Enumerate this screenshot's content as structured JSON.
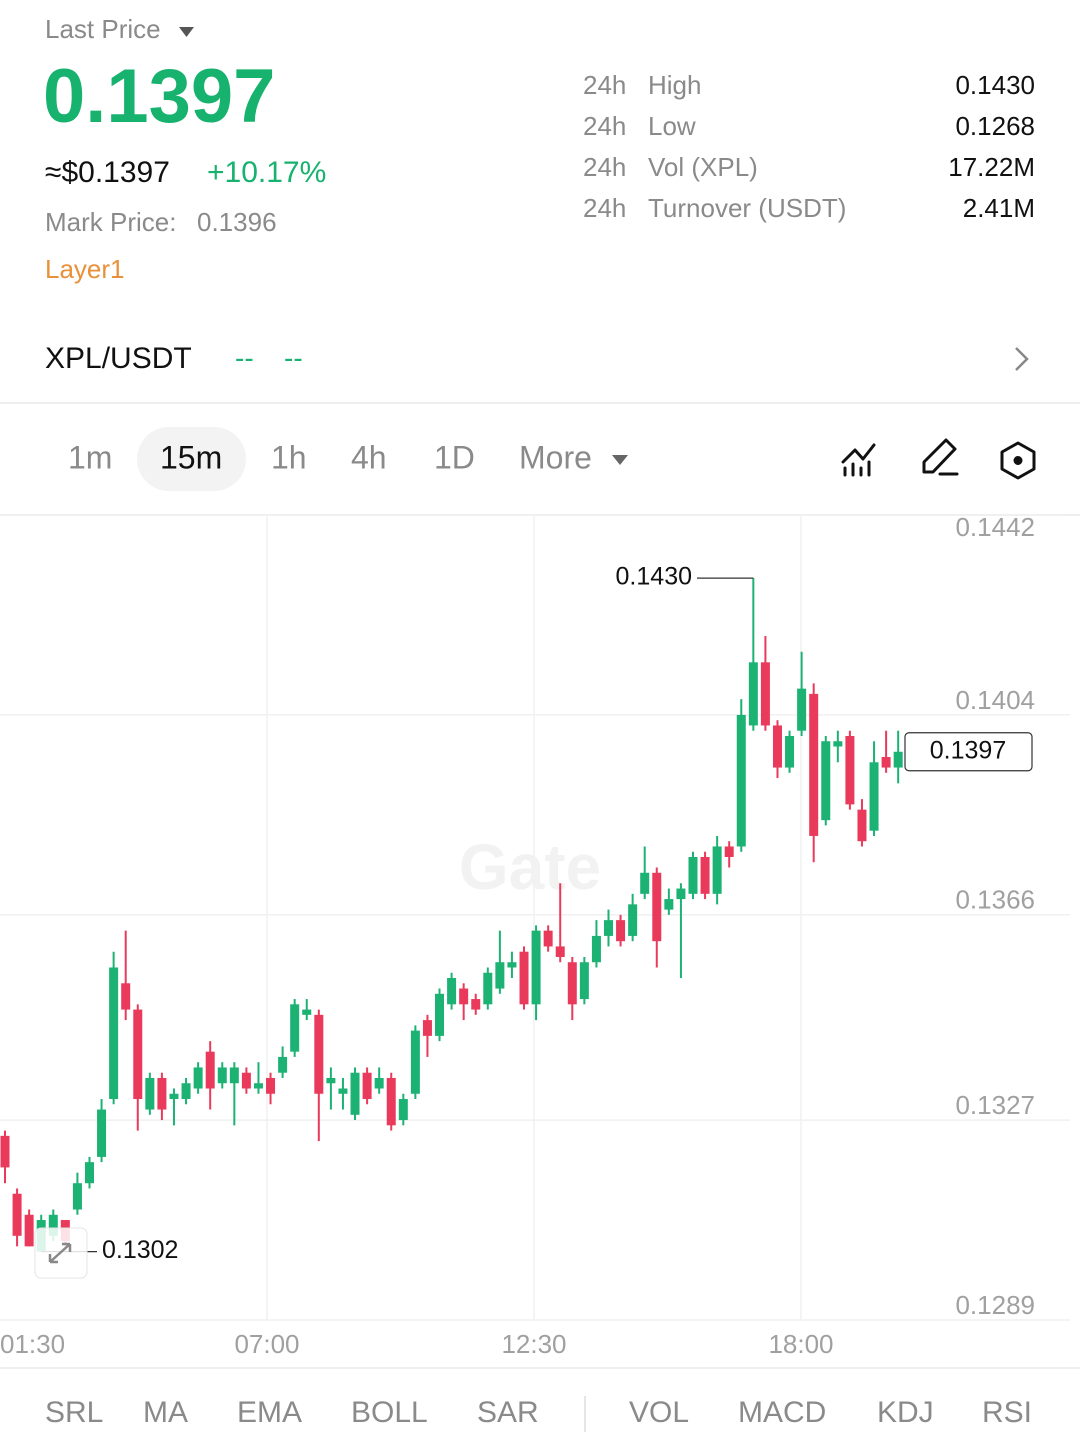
{
  "header": {
    "label": "Last Price",
    "price": "0.1397",
    "usd_price": "≈$0.1397",
    "change": "+10.17%",
    "mark_price_label": "Mark Price:",
    "mark_price": "0.1396",
    "tag": "Layer1"
  },
  "stats": [
    {
      "period": "24h",
      "label": "High",
      "value": "0.1430"
    },
    {
      "period": "24h",
      "label": "Low",
      "value": "0.1268"
    },
    {
      "period": "24h",
      "label": "Vol (XPL)",
      "value": "17.22M"
    },
    {
      "period": "24h",
      "label": "Turnover (USDT)",
      "value": "2.41M"
    }
  ],
  "pair": {
    "symbol": "XPL/USDT",
    "placeholders": [
      "--",
      "--"
    ]
  },
  "intervals": [
    "1m",
    "15m",
    "1h",
    "4h",
    "1D",
    "More"
  ],
  "indicators": {
    "main": [
      "SRL",
      "MA",
      "EMA",
      "BOLL",
      "SAR"
    ],
    "sub": [
      "VOL",
      "MACD",
      "KDJ",
      "RSI"
    ]
  },
  "watermark": "Gate",
  "chart_data": {
    "type": "candlestick",
    "x_labels": [
      "01:30",
      "07:00",
      "12:30",
      "18:00"
    ],
    "ylim": [
      0.1289,
      0.1442
    ],
    "yticks": [
      0.1442,
      0.1404,
      0.1366,
      0.1327,
      0.1289
    ],
    "grid": true,
    "up_color": "#1bb273",
    "down_color": "#ea3a5b",
    "open": [
      0.1324,
      0.1313,
      0.1309,
      0.1302,
      0.1305,
      0.1308,
      0.131,
      0.1315,
      0.132,
      0.1331,
      0.1353,
      0.1348,
      0.1329,
      0.1335,
      0.1331,
      0.1331,
      0.1333,
      0.134,
      0.1334,
      0.1334,
      0.1336,
      0.1333,
      0.1335,
      0.1336,
      0.134,
      0.1347,
      0.1347,
      0.1334,
      0.1332,
      0.1328,
      0.1336,
      0.1333,
      0.1335,
      0.1327,
      0.1332,
      0.1346,
      0.1343,
      0.1349,
      0.1352,
      0.135,
      0.1349,
      0.1352,
      0.1356,
      0.1359,
      0.1349,
      0.1363,
      0.136,
      0.1357,
      0.135,
      0.1357,
      0.1362,
      0.1365,
      0.1362,
      0.137,
      0.1374,
      0.1367,
      0.1369,
      0.137,
      0.1377,
      0.137,
      0.1379,
      0.1379,
      0.1402,
      0.1414,
      0.1402,
      0.1394,
      0.1401,
      0.1408,
      0.1384,
      0.1398,
      0.14,
      0.1386,
      0.1382,
      0.1396,
      0.1394
    ],
    "high": [
      0.1325,
      0.1314,
      0.131,
      0.1309,
      0.131,
      0.1308,
      0.1317,
      0.132,
      0.1331,
      0.1359,
      0.1363,
      0.1349,
      0.1336,
      0.1336,
      0.1333,
      0.1335,
      0.1338,
      0.1342,
      0.1338,
      0.1338,
      0.1337,
      0.1338,
      0.1336,
      0.1341,
      0.135,
      0.135,
      0.1348,
      0.1337,
      0.1335,
      0.1337,
      0.1337,
      0.1337,
      0.1336,
      0.1332,
      0.1345,
      0.1347,
      0.1352,
      0.1355,
      0.1353,
      0.1351,
      0.1356,
      0.1363,
      0.1359,
      0.136,
      0.1364,
      0.1364,
      0.1372,
      0.1358,
      0.1358,
      0.1365,
      0.1367,
      0.1366,
      0.137,
      0.1379,
      0.1375,
      0.1371,
      0.1372,
      0.1378,
      0.1378,
      0.1381,
      0.138,
      0.1407,
      0.143,
      0.1419,
      0.1403,
      0.1401,
      0.1416,
      0.141,
      0.14,
      0.1401,
      0.1401,
      0.1388,
      0.1399,
      0.1401,
      0.1401
    ],
    "low": [
      0.1315,
      0.1303,
      0.1303,
      0.1302,
      0.1304,
      0.1303,
      0.1309,
      0.1314,
      0.1319,
      0.133,
      0.1346,
      0.1325,
      0.1328,
      0.1327,
      0.1326,
      0.133,
      0.1332,
      0.1329,
      0.1333,
      0.1326,
      0.1332,
      0.1332,
      0.133,
      0.1335,
      0.1339,
      0.1346,
      0.1323,
      0.1329,
      0.1329,
      0.1327,
      0.133,
      0.1332,
      0.1325,
      0.1326,
      0.1331,
      0.1339,
      0.1342,
      0.1348,
      0.1346,
      0.1347,
      0.1348,
      0.1351,
      0.1354,
      0.1348,
      0.1346,
      0.1359,
      0.1357,
      0.1346,
      0.1349,
      0.1356,
      0.136,
      0.136,
      0.1361,
      0.1369,
      0.1356,
      0.1366,
      0.1354,
      0.1369,
      0.1369,
      0.1368,
      0.1375,
      0.1378,
      0.1401,
      0.1401,
      0.1392,
      0.1393,
      0.14,
      0.1376,
      0.1383,
      0.1395,
      0.1386,
      0.1379,
      0.1381,
      0.1393,
      0.1391
    ],
    "close": [
      0.1318,
      0.1305,
      0.1303,
      0.1308,
      0.1309,
      0.1304,
      0.1315,
      0.1319,
      0.1329,
      0.1356,
      0.1348,
      0.1331,
      0.1335,
      0.1329,
      0.1332,
      0.1334,
      0.1337,
      0.1333,
      0.1337,
      0.1337,
      0.1333,
      0.1334,
      0.1332,
      0.1339,
      0.1349,
      0.1348,
      0.1332,
      0.1335,
      0.1333,
      0.1336,
      0.1331,
      0.1335,
      0.1326,
      0.1331,
      0.1344,
      0.1343,
      0.1351,
      0.1354,
      0.1349,
      0.1348,
      0.1355,
      0.1357,
      0.1357,
      0.1349,
      0.1363,
      0.136,
      0.1358,
      0.1349,
      0.1357,
      0.1362,
      0.1365,
      0.1361,
      0.1368,
      0.1374,
      0.1361,
      0.1369,
      0.1371,
      0.1377,
      0.137,
      0.1379,
      0.1377,
      0.1404,
      0.1414,
      0.1402,
      0.1394,
      0.14,
      0.1409,
      0.1381,
      0.1399,
      0.1399,
      0.1387,
      0.138,
      0.1395,
      0.1394,
      0.1397
    ],
    "annotations": {
      "high": {
        "value": 0.143,
        "label": "0.1430"
      },
      "low": 0.1302,
      "last": 0.1397
    }
  }
}
